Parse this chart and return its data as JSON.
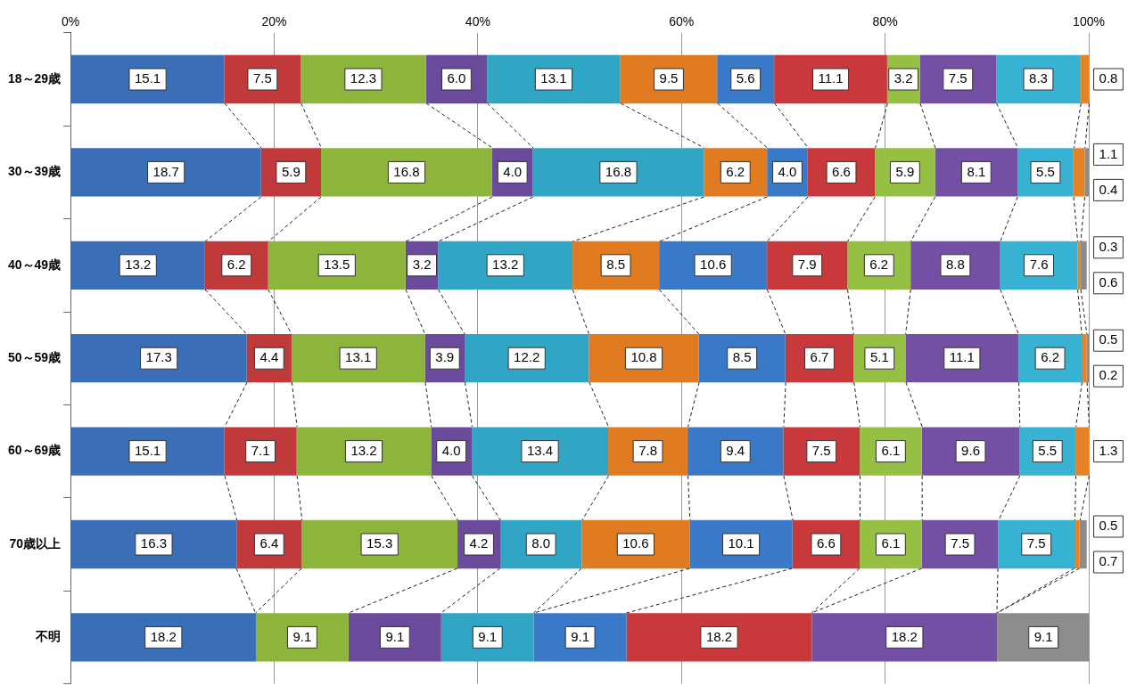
{
  "chart_data": {
    "type": "bar",
    "orientation": "horizontal",
    "stacked": true,
    "categories": [
      "18～29歳",
      "30～39歳",
      "40～49歳",
      "50～59歳",
      "60～69歳",
      "70歳以上",
      "不明"
    ],
    "series": [
      {
        "color": "#3a6fb8",
        "values": [
          15.1,
          18.7,
          13.2,
          17.3,
          15.1,
          16.3,
          18.2
        ],
        "value_labels": [
          "15.1",
          "18.7",
          "13.2",
          "17.3",
          "15.1",
          "16.3",
          "18.2"
        ]
      },
      {
        "color": "#c0393b",
        "values": [
          7.5,
          5.9,
          6.2,
          4.4,
          7.1,
          6.4,
          null
        ],
        "value_labels": [
          "7.5",
          "5.9",
          "6.2",
          "4.4",
          "7.1",
          "6.4",
          null
        ]
      },
      {
        "color": "#8db53c",
        "values": [
          12.3,
          16.8,
          13.5,
          13.1,
          13.2,
          15.3,
          9.1
        ],
        "value_labels": [
          "12.3",
          "16.8",
          "13.5",
          "13.1",
          "13.2",
          "15.3",
          "9.1"
        ]
      },
      {
        "color": "#6a4a9a",
        "values": [
          6.0,
          4.0,
          3.2,
          3.9,
          4.0,
          4.2,
          9.1
        ],
        "value_labels": [
          "6.0",
          "4.0",
          "3.2",
          "3.9",
          "4.0",
          "4.2",
          "9.1"
        ]
      },
      {
        "color": "#31a5c4",
        "values": [
          13.1,
          16.8,
          13.2,
          12.2,
          13.4,
          8.0,
          9.1
        ],
        "value_labels": [
          "13.1",
          "16.8",
          "13.2",
          "12.2",
          "13.4",
          "8.0",
          "9.1"
        ]
      },
      {
        "color": "#e07b22",
        "values": [
          9.5,
          6.2,
          8.5,
          10.8,
          7.8,
          10.6,
          null
        ],
        "value_labels": [
          "9.5",
          "6.2",
          "8.5",
          "10.8",
          "7.8",
          "10.6",
          null
        ]
      },
      {
        "color": "#3a78c8",
        "values": [
          5.6,
          4.0,
          10.6,
          8.5,
          9.4,
          10.1,
          9.1
        ],
        "value_labels": [
          "5.6",
          "4.0",
          "10.6",
          "8.5",
          "9.4",
          "10.1",
          "9.1"
        ]
      },
      {
        "color": "#c8393b",
        "values": [
          11.1,
          6.6,
          7.9,
          6.7,
          7.5,
          6.6,
          18.2
        ],
        "value_labels": [
          "11.1",
          "6.6",
          "7.9",
          "6.7",
          "7.5",
          "6.6",
          "18.2"
        ]
      },
      {
        "color": "#95c043",
        "values": [
          3.2,
          5.9,
          6.2,
          5.1,
          6.1,
          6.1,
          null
        ],
        "value_labels": [
          "3.2",
          "5.9",
          "6.2",
          "5.1",
          "6.1",
          "6.1",
          null
        ]
      },
      {
        "color": "#7350a3",
        "values": [
          7.5,
          8.1,
          8.8,
          11.1,
          9.6,
          7.5,
          18.2
        ],
        "value_labels": [
          "7.5",
          "8.1",
          "8.8",
          "11.1",
          "9.6",
          "7.5",
          "18.2"
        ]
      },
      {
        "color": "#38b2d2",
        "values": [
          8.3,
          5.5,
          7.6,
          6.2,
          5.5,
          7.5,
          null
        ],
        "value_labels": [
          "8.3",
          "5.5",
          "7.6",
          "6.2",
          "5.5",
          "7.5",
          null
        ]
      },
      {
        "color": "#e58326",
        "values": [
          0.8,
          1.1,
          0.3,
          0.5,
          1.3,
          0.5,
          null
        ],
        "value_labels": [
          "0.8",
          "1.1",
          "0.3",
          "0.5",
          "1.3",
          "0.5",
          null
        ]
      },
      {
        "color": "#8c8c8c",
        "values": [
          null,
          0.4,
          0.6,
          0.2,
          null,
          0.7,
          9.1
        ],
        "value_labels": [
          null,
          "0.4",
          "0.6",
          "0.2",
          null,
          "0.7",
          "9.1"
        ]
      }
    ],
    "xlim": [
      0,
      100
    ],
    "xticks": [
      {
        "value": 0,
        "label": "0%"
      },
      {
        "value": 20,
        "label": "20%"
      },
      {
        "value": 40,
        "label": "40%"
      },
      {
        "value": 60,
        "label": "60%"
      },
      {
        "value": 80,
        "label": "80%"
      },
      {
        "value": 100,
        "label": "100%"
      }
    ],
    "grid": "x",
    "legend": false
  }
}
